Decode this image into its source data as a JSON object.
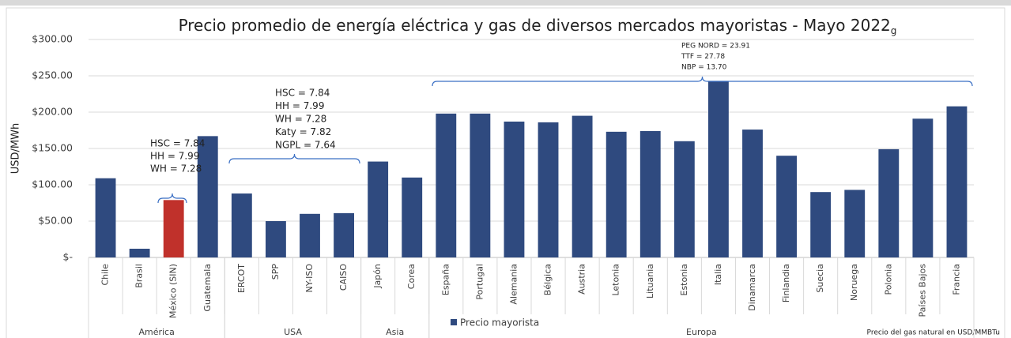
{
  "chart_data": {
    "type": "bar",
    "title": "Precio promedio de energía eléctrica y gas de diversos mercados mayoristas - Mayo 2022",
    "title_subscript": "g",
    "y_label": "USD/MWh",
    "categories": [
      "Chile",
      "Brasil",
      "México (SIN)",
      "Guatemala",
      "ERCOT",
      "SPP",
      "NY-ISO",
      "CAISO",
      "Japón",
      "Corea",
      "España",
      "Portugal",
      "Alemania",
      "Bélgica",
      "Austria",
      "Letonia",
      "Lituania",
      "Estonia",
      "Italia",
      "Dinamarca",
      "Finlandia",
      "Suecia",
      "Noruega",
      "Polonia",
      "Países Bajos",
      "Francia"
    ],
    "groups": [
      {
        "name": "América",
        "size": 4
      },
      {
        "name": "USA",
        "size": 4
      },
      {
        "name": "Asia",
        "size": 2
      },
      {
        "name": "Europa",
        "size": 16
      }
    ],
    "series": [
      {
        "name": "Precio mayorista",
        "color": "#2f4a7f",
        "point_colors": [
          "#2f4a7f",
          "#2f4a7f",
          "#c0312b",
          "#2f4a7f",
          "#2f4a7f",
          "#2f4a7f",
          "#2f4a7f",
          "#2f4a7f",
          "#2f4a7f",
          "#2f4a7f",
          "#2f4a7f",
          "#2f4a7f",
          "#2f4a7f",
          "#2f4a7f",
          "#2f4a7f",
          "#2f4a7f",
          "#2f4a7f",
          "#2f4a7f",
          "#2f4a7f",
          "#2f4a7f",
          "#2f4a7f",
          "#2f4a7f",
          "#2f4a7f",
          "#2f4a7f",
          "#2f4a7f",
          "#2f4a7f"
        ],
        "values": [
          109,
          12,
          79,
          167,
          88,
          50,
          60,
          61,
          132,
          110,
          198,
          198,
          187,
          186,
          195,
          173,
          174,
          160,
          243,
          176,
          140,
          90,
          93,
          149,
          191,
          208
        ]
      }
    ],
    "ylim": [
      0,
      300
    ],
    "yticks": [
      {
        "value": 0,
        "label": "$-"
      },
      {
        "value": 50,
        "label": "$50.00"
      },
      {
        "value": 100,
        "label": "$100.00"
      },
      {
        "value": 150,
        "label": "$150.00"
      },
      {
        "value": 200,
        "label": "$200.00"
      },
      {
        "value": 250,
        "label": "$250.00"
      },
      {
        "value": 300,
        "label": "$300.00"
      }
    ],
    "grid": true,
    "annotations": [
      {
        "lines": [
          "HSC = 7.84",
          "HH = 7.99",
          "WH = 7.28"
        ]
      },
      {
        "lines": [
          "HSC = 7.84",
          "HH = 7.99",
          "WH = 7.28",
          "Katy = 7.82",
          "NGPL = 7.64"
        ]
      },
      {
        "lines": [
          "PEG NORD = 23.91",
          "TTF = 27.78",
          "NBP = 13.70"
        ]
      }
    ],
    "footnote": "Precio del gas natural en USD/MMBTu"
  }
}
